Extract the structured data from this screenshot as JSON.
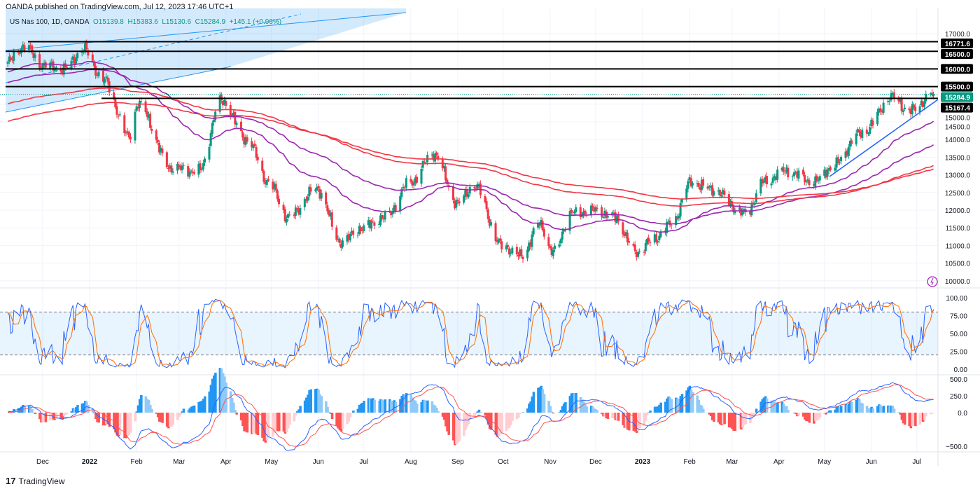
{
  "header": {
    "published": "OANDA published on TradingView.com, Jul 12, 2023 17:46 UTC+1"
  },
  "legend": {
    "symbol": "US Nas 100, 1D, OANDA",
    "open": "O15139.8",
    "high": "H15383.6",
    "low": "L15130.6",
    "close": "C15284.9",
    "change": "+145.1 (+0.96%)"
  },
  "brand": "TradingView",
  "colors": {
    "up": "#089981",
    "down": "#f23645",
    "ma_fast": "#9c27b0",
    "ma_slow": "#f23645",
    "line": "#2962ff",
    "stoch_k": "#2962ff",
    "stoch_d": "#ff6d00",
    "macd": "#2962ff",
    "signal": "#ff5252"
  },
  "chart_data": {
    "type": "candlestick",
    "title": "US Nas 100, 1D, OANDA",
    "price_ticks": [
      "17000.0",
      "16500.0",
      "16000.0",
      "15500.0",
      "15000.0",
      "14500.0",
      "14000.0",
      "13500.0",
      "13000.0",
      "12500.0",
      "12000.0",
      "11500.0",
      "11000.0",
      "10500.0",
      "10000.0"
    ],
    "price_range": [
      10000,
      17000
    ],
    "price_labels": [
      {
        "value": 16771.6,
        "text": "16771.6"
      },
      {
        "value": 16500,
        "text": "16500.0"
      },
      {
        "value": 16000,
        "text": "16000.0"
      },
      {
        "value": 15500,
        "text": "15500.0"
      },
      {
        "value": 15167.4,
        "text": "15167.4"
      }
    ],
    "last_price": {
      "value": 15284.9,
      "text": "15284.9"
    },
    "time_ticks": [
      {
        "date": "2021-12-01",
        "text": "Dec"
      },
      {
        "date": "2022-01-01",
        "text": "2022"
      },
      {
        "date": "2022-02-01",
        "text": "Feb"
      },
      {
        "date": "2022-03-01",
        "text": "Mar"
      },
      {
        "date": "2022-04-01",
        "text": "Apr"
      },
      {
        "date": "2022-05-01",
        "text": "May"
      },
      {
        "date": "2022-06-01",
        "text": "Jun"
      },
      {
        "date": "2022-07-01",
        "text": "Jul"
      },
      {
        "date": "2022-08-01",
        "text": "Aug"
      },
      {
        "date": "2022-09-01",
        "text": "Sep"
      },
      {
        "date": "2022-10-01",
        "text": "Oct"
      },
      {
        "date": "2022-11-01",
        "text": "Nov"
      },
      {
        "date": "2022-12-01",
        "text": "Dec"
      },
      {
        "date": "2023-01-01",
        "text": "2023"
      },
      {
        "date": "2023-02-01",
        "text": "Feb"
      },
      {
        "date": "2023-03-01",
        "text": "Mar"
      },
      {
        "date": "2023-04-01",
        "text": "Apr"
      },
      {
        "date": "2023-05-01",
        "text": "May"
      },
      {
        "date": "2023-06-01",
        "text": "Jun"
      },
      {
        "date": "2023-07-01",
        "text": "Jul"
      }
    ],
    "close_path": [
      [
        "2021-11-08",
        16200
      ],
      [
        "2021-11-19",
        16650
      ],
      [
        "2021-12-01",
        16100
      ],
      [
        "2021-12-15",
        16000
      ],
      [
        "2021-12-28",
        16550
      ],
      [
        "2022-01-10",
        15700
      ],
      [
        "2022-01-27",
        14100
      ],
      [
        "2022-02-02",
        15000
      ],
      [
        "2022-02-24",
        13200
      ],
      [
        "2022-03-14",
        13100
      ],
      [
        "2022-03-29",
        15100
      ],
      [
        "2022-04-15",
        14000
      ],
      [
        "2022-04-29",
        12800
      ],
      [
        "2022-05-12",
        11800
      ],
      [
        "2022-05-31",
        12600
      ],
      [
        "2022-06-16",
        11100
      ],
      [
        "2022-06-30",
        11500
      ],
      [
        "2022-07-15",
        11800
      ],
      [
        "2022-08-01",
        12800
      ],
      [
        "2022-08-16",
        13600
      ],
      [
        "2022-09-01",
        12200
      ],
      [
        "2022-09-12",
        12700
      ],
      [
        "2022-09-30",
        11000
      ],
      [
        "2022-10-13",
        10700
      ],
      [
        "2022-10-25",
        11600
      ],
      [
        "2022-11-03",
        10800
      ],
      [
        "2022-11-15",
        11900
      ],
      [
        "2022-12-01",
        12000
      ],
      [
        "2022-12-13",
        11800
      ],
      [
        "2022-12-28",
        10800
      ],
      [
        "2023-01-06",
        11100
      ],
      [
        "2023-01-20",
        11600
      ],
      [
        "2023-02-02",
        12800
      ],
      [
        "2023-02-15",
        12600
      ],
      [
        "2023-03-10",
        11900
      ],
      [
        "2023-03-22",
        12800
      ],
      [
        "2023-04-05",
        13100
      ],
      [
        "2023-04-25",
        12800
      ],
      [
        "2023-05-05",
        13200
      ],
      [
        "2023-05-26",
        14200
      ],
      [
        "2023-06-15",
        15200
      ],
      [
        "2023-06-26",
        14800
      ],
      [
        "2023-07-12",
        15285
      ]
    ],
    "stoch_ticks": [
      "100.00",
      "75.00",
      "50.00",
      "25.00",
      "0.00"
    ],
    "stoch_bands": [
      20,
      80
    ],
    "macd_ticks": [
      {
        "value": 500,
        "text": "500.0"
      },
      {
        "value": 250,
        "text": "250.0"
      },
      {
        "value": 0,
        "text": "0.0"
      },
      {
        "value": -500,
        "text": "−500.0"
      }
    ]
  }
}
